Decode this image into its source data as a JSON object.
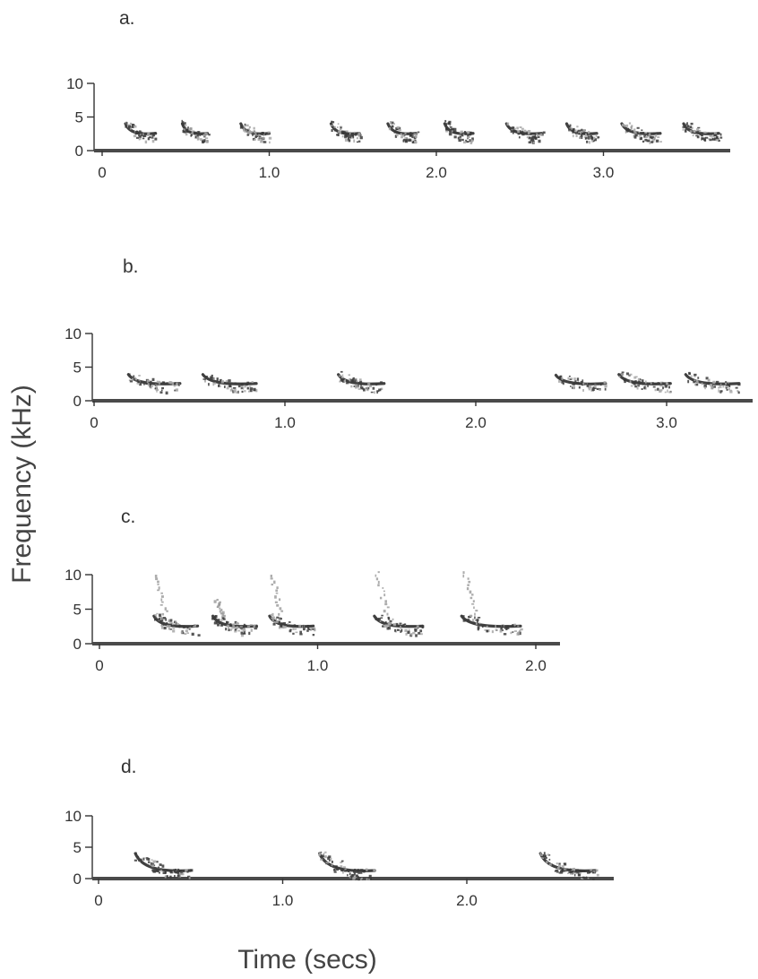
{
  "figure": {
    "ylabel": "Frequency (kHz)",
    "xlabel": "Time (secs)"
  },
  "chart_data": [
    {
      "type": "spectrogram",
      "panel": "a.",
      "xlabel": "Time (secs)",
      "ylabel": "Frequency (kHz)",
      "xlim": [
        0,
        3.83
      ],
      "ylim": [
        0,
        10
      ],
      "xticks": [
        0,
        1.0,
        2.0,
        3.0
      ],
      "xtick_labels": [
        "0",
        "1.0",
        "2.0",
        "3.0"
      ],
      "yticks": [
        0,
        5,
        10
      ],
      "ytick_labels": [
        "0",
        "5",
        "10"
      ],
      "notes": [
        {
          "start": 0.14,
          "end": 0.32,
          "fmax": 4.5,
          "fmin": 2.3
        },
        {
          "start": 0.48,
          "end": 0.63,
          "fmax": 4.6,
          "fmin": 2.3
        },
        {
          "start": 0.83,
          "end": 1.0,
          "fmax": 4.5,
          "fmin": 2.3
        },
        {
          "start": 1.37,
          "end": 1.54,
          "fmax": 4.5,
          "fmin": 2.3
        },
        {
          "start": 1.71,
          "end": 1.88,
          "fmax": 4.6,
          "fmin": 2.3
        },
        {
          "start": 2.05,
          "end": 2.22,
          "fmax": 4.6,
          "fmin": 2.3
        },
        {
          "start": 2.42,
          "end": 2.63,
          "fmax": 4.7,
          "fmin": 2.3
        },
        {
          "start": 2.78,
          "end": 2.96,
          "fmax": 4.5,
          "fmin": 2.3
        },
        {
          "start": 3.11,
          "end": 3.34,
          "fmax": 4.7,
          "fmin": 2.3
        },
        {
          "start": 3.48,
          "end": 3.69,
          "fmax": 4.6,
          "fmin": 2.3
        }
      ]
    },
    {
      "type": "spectrogram",
      "panel": "b.",
      "xlabel": "Time (secs)",
      "ylabel": "Frequency (kHz)",
      "xlim": [
        0,
        3.43
      ],
      "ylim": [
        0,
        10
      ],
      "xticks": [
        0,
        1.0,
        2.0,
        3.0
      ],
      "xtick_labels": [
        "0",
        "1.0",
        "2.0",
        "3.0"
      ],
      "yticks": [
        0,
        5,
        10
      ],
      "ytick_labels": [
        "0",
        "5",
        "10"
      ],
      "notes": [
        {
          "start": 0.18,
          "end": 0.45,
          "fmax": 3.9,
          "fmin": 2.3
        },
        {
          "start": 0.57,
          "end": 0.85,
          "fmax": 3.9,
          "fmin": 2.3
        },
        {
          "start": 1.28,
          "end": 1.52,
          "fmax": 3.9,
          "fmin": 2.3
        },
        {
          "start": 2.42,
          "end": 2.68,
          "fmax": 3.8,
          "fmin": 2.3
        },
        {
          "start": 2.75,
          "end": 3.02,
          "fmax": 3.9,
          "fmin": 2.3
        },
        {
          "start": 3.1,
          "end": 3.38,
          "fmax": 3.9,
          "fmin": 2.3
        }
      ]
    },
    {
      "type": "spectrogram",
      "panel": "c.",
      "xlabel": "Time (secs)",
      "ylabel": "Frequency (kHz)",
      "xlim": [
        0,
        2.1
      ],
      "ylim": [
        0,
        10
      ],
      "xticks": [
        0,
        1.0,
        2.0
      ],
      "xtick_labels": [
        "0",
        "1.0",
        "2.0"
      ],
      "yticks": [
        0,
        5,
        10
      ],
      "ytick_labels": [
        "0",
        "5",
        "10"
      ],
      "notes": [
        {
          "start": 0.25,
          "end": 0.45,
          "fmax": 10.0,
          "fmin": 2.3
        },
        {
          "start": 0.52,
          "end": 0.72,
          "fmax": 6.5,
          "fmin": 2.3
        },
        {
          "start": 0.78,
          "end": 0.98,
          "fmax": 10.0,
          "fmin": 2.3
        },
        {
          "start": 1.26,
          "end": 1.48,
          "fmax": 10.5,
          "fmin": 2.3
        },
        {
          "start": 1.66,
          "end": 1.93,
          "fmax": 10.5,
          "fmin": 2.3
        }
      ]
    },
    {
      "type": "spectrogram",
      "panel": "d.",
      "xlabel": "Time (secs)",
      "ylabel": "Frequency (kHz)",
      "xlim": [
        0,
        2.8
      ],
      "ylim": [
        0,
        10
      ],
      "xticks": [
        0,
        1.0,
        2.0
      ],
      "xtick_labels": [
        "0",
        "1.0",
        "2.0"
      ],
      "yticks": [
        0,
        5,
        10
      ],
      "ytick_labels": [
        "0",
        "5",
        "10"
      ],
      "notes": [
        {
          "start": 0.2,
          "end": 0.5,
          "fmax": 4.5,
          "fmin": 1.0
        },
        {
          "start": 1.2,
          "end": 1.5,
          "fmax": 4.5,
          "fmin": 1.0
        },
        {
          "start": 2.4,
          "end": 2.7,
          "fmax": 4.2,
          "fmin": 1.0
        }
      ]
    }
  ]
}
